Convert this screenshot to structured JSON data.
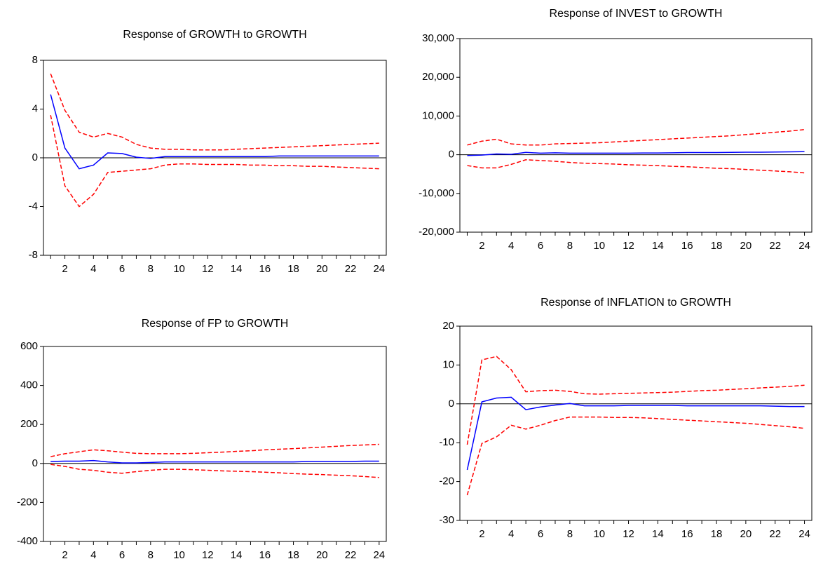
{
  "chart_data": [
    {
      "type": "line",
      "title": "Response of GROWTH to GROWTH",
      "x": [
        1,
        2,
        3,
        4,
        5,
        6,
        7,
        8,
        9,
        10,
        11,
        12,
        13,
        14,
        15,
        16,
        17,
        18,
        19,
        20,
        21,
        22,
        23,
        24
      ],
      "xlim": [
        0.5,
        24.5
      ],
      "xticks": [
        2,
        4,
        6,
        8,
        10,
        12,
        14,
        16,
        18,
        20,
        22,
        24
      ],
      "ylim": [
        -8,
        8
      ],
      "yticks": [
        -8,
        -4,
        0,
        4,
        8
      ],
      "zero_line": true,
      "series": [
        {
          "color": "#0000ff",
          "dash": false,
          "values": [
            5.2,
            0.8,
            -0.9,
            -0.6,
            0.4,
            0.35,
            0.05,
            -0.05,
            0.1,
            0.1,
            0.1,
            0.1,
            0.1,
            0.1,
            0.1,
            0.1,
            0.15,
            0.15,
            0.15,
            0.15,
            0.15,
            0.15,
            0.15,
            0.15
          ]
        },
        {
          "color": "#ff0000",
          "dash": true,
          "values": [
            6.9,
            3.9,
            2.1,
            1.7,
            2.0,
            1.7,
            1.1,
            0.8,
            0.7,
            0.7,
            0.65,
            0.65,
            0.65,
            0.7,
            0.75,
            0.8,
            0.85,
            0.9,
            0.95,
            1.0,
            1.05,
            1.1,
            1.15,
            1.2
          ]
        },
        {
          "color": "#ff0000",
          "dash": true,
          "values": [
            3.5,
            -2.3,
            -4.0,
            -3.0,
            -1.2,
            -1.1,
            -1.0,
            -0.9,
            -0.6,
            -0.5,
            -0.5,
            -0.55,
            -0.55,
            -0.55,
            -0.6,
            -0.6,
            -0.65,
            -0.65,
            -0.7,
            -0.7,
            -0.75,
            -0.8,
            -0.85,
            -0.9
          ]
        }
      ]
    },
    {
      "type": "line",
      "title": "Response of INVEST to GROWTH",
      "x": [
        1,
        2,
        3,
        4,
        5,
        6,
        7,
        8,
        9,
        10,
        11,
        12,
        13,
        14,
        15,
        16,
        17,
        18,
        19,
        20,
        21,
        22,
        23,
        24
      ],
      "xlim": [
        0.5,
        24.5
      ],
      "xticks": [
        2,
        4,
        6,
        8,
        10,
        12,
        14,
        16,
        18,
        20,
        22,
        24
      ],
      "ylim": [
        -20000,
        30000
      ],
      "yticks": [
        {
          "value": -20000,
          "label": "-20,000"
        },
        {
          "value": -10000,
          "label": "-10,000"
        },
        0,
        {
          "value": 10000,
          "label": "10,000"
        },
        {
          "value": 20000,
          "label": "20,000"
        },
        {
          "value": 30000,
          "label": "30,000"
        }
      ],
      "zero_line": true,
      "series": [
        {
          "color": "#0000ff",
          "dash": false,
          "values": [
            -200,
            -100,
            200,
            100,
            600,
            400,
            500,
            400,
            400,
            400,
            400,
            400,
            450,
            450,
            500,
            550,
            550,
            550,
            600,
            650,
            650,
            700,
            750,
            800
          ]
        },
        {
          "color": "#ff0000",
          "dash": true,
          "values": [
            2500,
            3500,
            4000,
            2800,
            2500,
            2500,
            2800,
            2900,
            3000,
            3100,
            3300,
            3500,
            3700,
            3900,
            4100,
            4300,
            4500,
            4700,
            4900,
            5200,
            5500,
            5800,
            6100,
            6500
          ]
        },
        {
          "color": "#ff0000",
          "dash": true,
          "values": [
            -2800,
            -3400,
            -3400,
            -2500,
            -1300,
            -1500,
            -1700,
            -2000,
            -2200,
            -2300,
            -2400,
            -2600,
            -2700,
            -2800,
            -3000,
            -3100,
            -3300,
            -3500,
            -3600,
            -3800,
            -4000,
            -4200,
            -4400,
            -4700
          ]
        }
      ]
    },
    {
      "type": "line",
      "title": "Response of FP to GROWTH",
      "x": [
        1,
        2,
        3,
        4,
        5,
        6,
        7,
        8,
        9,
        10,
        11,
        12,
        13,
        14,
        15,
        16,
        17,
        18,
        19,
        20,
        21,
        22,
        23,
        24
      ],
      "xlim": [
        0.5,
        24.5
      ],
      "xticks": [
        2,
        4,
        6,
        8,
        10,
        12,
        14,
        16,
        18,
        20,
        22,
        24
      ],
      "ylim": [
        -400,
        600
      ],
      "yticks": [
        -400,
        -200,
        0,
        200,
        400,
        600
      ],
      "zero_line": true,
      "series": [
        {
          "color": "#0000ff",
          "dash": false,
          "values": [
            10,
            12,
            12,
            15,
            8,
            3,
            3,
            5,
            8,
            8,
            8,
            8,
            8,
            8,
            8,
            8,
            8,
            8,
            10,
            10,
            10,
            10,
            12,
            12
          ]
        },
        {
          "color": "#ff0000",
          "dash": true,
          "values": [
            35,
            50,
            60,
            70,
            65,
            58,
            52,
            50,
            50,
            50,
            52,
            55,
            58,
            62,
            65,
            70,
            73,
            76,
            80,
            84,
            88,
            92,
            95,
            98
          ]
        },
        {
          "color": "#ff0000",
          "dash": true,
          "values": [
            -5,
            -15,
            -30,
            -35,
            -45,
            -50,
            -42,
            -35,
            -30,
            -30,
            -32,
            -35,
            -38,
            -40,
            -42,
            -45,
            -48,
            -52,
            -55,
            -57,
            -60,
            -63,
            -67,
            -72
          ]
        }
      ]
    },
    {
      "type": "line",
      "title": "Response of INFLATION to GROWTH",
      "x": [
        1,
        2,
        3,
        4,
        5,
        6,
        7,
        8,
        9,
        10,
        11,
        12,
        13,
        14,
        15,
        16,
        17,
        18,
        19,
        20,
        21,
        22,
        23,
        24
      ],
      "xlim": [
        0.5,
        24.5
      ],
      "xticks": [
        2,
        4,
        6,
        8,
        10,
        12,
        14,
        16,
        18,
        20,
        22,
        24
      ],
      "ylim": [
        -30,
        20
      ],
      "yticks": [
        -30,
        -20,
        -10,
        0,
        10,
        20
      ],
      "zero_line": true,
      "series": [
        {
          "color": "#0000ff",
          "dash": false,
          "values": [
            -17,
            0.5,
            1.5,
            1.7,
            -1.5,
            -0.8,
            -0.3,
            0.1,
            -0.5,
            -0.5,
            -0.5,
            -0.4,
            -0.4,
            -0.4,
            -0.4,
            -0.5,
            -0.5,
            -0.5,
            -0.5,
            -0.5,
            -0.5,
            -0.6,
            -0.7,
            -0.7
          ]
        },
        {
          "color": "#ff0000",
          "dash": true,
          "values": [
            -10.5,
            11.3,
            12.2,
            8.8,
            3.1,
            3.4,
            3.5,
            3.2,
            2.6,
            2.5,
            2.6,
            2.7,
            2.8,
            2.9,
            3.0,
            3.2,
            3.4,
            3.5,
            3.7,
            3.9,
            4.1,
            4.3,
            4.5,
            4.8
          ]
        },
        {
          "color": "#ff0000",
          "dash": true,
          "values": [
            -23.5,
            -10.2,
            -8.5,
            -5.5,
            -6.5,
            -5.5,
            -4.3,
            -3.4,
            -3.4,
            -3.4,
            -3.5,
            -3.5,
            -3.6,
            -3.8,
            -4.0,
            -4.2,
            -4.4,
            -4.6,
            -4.8,
            -5.0,
            -5.3,
            -5.6,
            -5.9,
            -6.3
          ]
        }
      ]
    }
  ]
}
